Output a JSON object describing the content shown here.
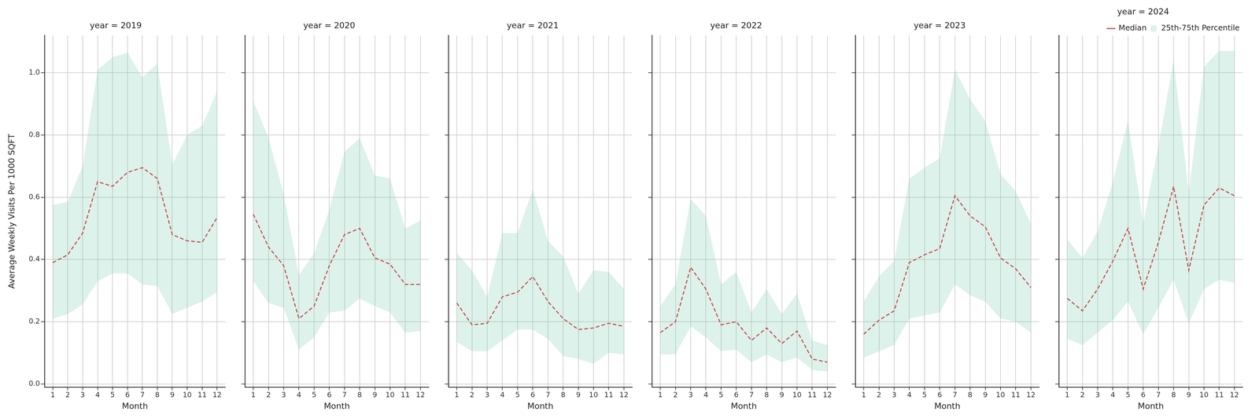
{
  "chart_data": [
    {
      "type": "line",
      "title": "year = 2019",
      "x_label": "Month",
      "y_label": "Average Weekly Visits Per 1000 SQFT",
      "x": [
        1,
        2,
        3,
        4,
        5,
        6,
        7,
        8,
        9,
        10,
        11,
        12
      ],
      "xlim": [
        0.45,
        12.55
      ],
      "xticks": [
        1,
        2,
        3,
        4,
        5,
        6,
        7,
        8,
        9,
        10,
        11,
        12
      ],
      "ylim": [
        -0.01,
        1.12
      ],
      "yticks": [
        {
          "value": 0,
          "label": "0.0"
        },
        0.2,
        0.4,
        0.6,
        0.8,
        {
          "value": 1,
          "label": "1.0"
        }
      ],
      "grid": true,
      "series": [
        {
          "name": "Median",
          "type": "line",
          "color": "#c44e52",
          "line_style": "dashed",
          "values": [
            0.39,
            0.415,
            0.485,
            0.65,
            0.635,
            0.68,
            0.695,
            0.66,
            0.48,
            0.46,
            0.455,
            0.535
          ]
        },
        {
          "name": "25th-75th Percentile",
          "type": "area",
          "color": "#66c2a5",
          "lower": [
            0.21,
            0.225,
            0.255,
            0.33,
            0.355,
            0.355,
            0.32,
            0.315,
            0.225,
            0.245,
            0.265,
            0.295
          ],
          "upper": [
            0.575,
            0.585,
            0.7,
            1.01,
            1.05,
            1.065,
            0.985,
            1.03,
            0.705,
            0.8,
            0.83,
            0.94
          ]
        }
      ]
    },
    {
      "type": "line",
      "title": "year = 2020",
      "x_label": "Month",
      "tick_labels": "x",
      "x": [
        1,
        2,
        3,
        4,
        5,
        6,
        7,
        8,
        9,
        10,
        11,
        12
      ],
      "xlim": [
        0.45,
        12.55
      ],
      "xticks": [
        1,
        2,
        3,
        4,
        5,
        6,
        7,
        8,
        9,
        10,
        11,
        12
      ],
      "ylim": [
        -0.01,
        1.12
      ],
      "yticks": [
        {
          "value": 0,
          "label": "0.0"
        },
        0.2,
        0.4,
        0.6,
        0.8,
        {
          "value": 1,
          "label": "1.0"
        }
      ],
      "grid": true,
      "series": [
        {
          "name": "Median",
          "type": "line",
          "color": "#c44e52",
          "line_style": "dashed",
          "values": [
            0.545,
            0.44,
            0.38,
            0.21,
            0.25,
            0.38,
            0.48,
            0.5,
            0.405,
            0.385,
            0.32,
            0.32
          ]
        },
        {
          "name": "25th-75th Percentile",
          "type": "area",
          "color": "#66c2a5",
          "lower": [
            0.33,
            0.26,
            0.245,
            0.11,
            0.15,
            0.23,
            0.235,
            0.275,
            0.25,
            0.23,
            0.165,
            0.17
          ],
          "upper": [
            0.91,
            0.79,
            0.61,
            0.35,
            0.42,
            0.56,
            0.745,
            0.79,
            0.67,
            0.66,
            0.5,
            0.525
          ]
        }
      ]
    },
    {
      "type": "line",
      "title": "year = 2021",
      "x_label": "Month",
      "tick_labels": "x",
      "x": [
        1,
        2,
        3,
        4,
        5,
        6,
        7,
        8,
        9,
        10,
        11,
        12
      ],
      "xlim": [
        0.45,
        12.55
      ],
      "xticks": [
        1,
        2,
        3,
        4,
        5,
        6,
        7,
        8,
        9,
        10,
        11,
        12
      ],
      "ylim": [
        -0.01,
        1.12
      ],
      "yticks": [
        {
          "value": 0,
          "label": "0.0"
        },
        0.2,
        0.4,
        0.6,
        0.8,
        {
          "value": 1,
          "label": "1.0"
        }
      ],
      "grid": true,
      "series": [
        {
          "name": "Median",
          "type": "line",
          "color": "#c44e52",
          "line_style": "dashed",
          "values": [
            0.26,
            0.19,
            0.195,
            0.28,
            0.295,
            0.345,
            0.265,
            0.21,
            0.175,
            0.18,
            0.195,
            0.185
          ]
        },
        {
          "name": "25th-75th Percentile",
          "type": "area",
          "color": "#66c2a5",
          "lower": [
            0.135,
            0.105,
            0.105,
            0.14,
            0.175,
            0.175,
            0.145,
            0.09,
            0.08,
            0.065,
            0.1,
            0.095
          ],
          "upper": [
            0.42,
            0.365,
            0.28,
            0.485,
            0.485,
            0.625,
            0.46,
            0.41,
            0.29,
            0.365,
            0.36,
            0.305
          ]
        }
      ]
    },
    {
      "type": "line",
      "title": "year = 2022",
      "x_label": "Month",
      "tick_labels": "x",
      "x": [
        1,
        2,
        3,
        4,
        5,
        6,
        7,
        8,
        9,
        10,
        11,
        12
      ],
      "xlim": [
        0.45,
        12.55
      ],
      "xticks": [
        1,
        2,
        3,
        4,
        5,
        6,
        7,
        8,
        9,
        10,
        11,
        12
      ],
      "ylim": [
        -0.01,
        1.12
      ],
      "yticks": [
        {
          "value": 0,
          "label": "0.0"
        },
        0.2,
        0.4,
        0.6,
        0.8,
        {
          "value": 1,
          "label": "1.0"
        }
      ],
      "grid": true,
      "series": [
        {
          "name": "Median",
          "type": "line",
          "color": "#c44e52",
          "line_style": "dashed",
          "values": [
            0.165,
            0.2,
            0.375,
            0.305,
            0.19,
            0.2,
            0.14,
            0.18,
            0.13,
            0.17,
            0.08,
            0.07
          ]
        },
        {
          "name": "25th-75th Percentile",
          "type": "area",
          "color": "#66c2a5",
          "lower": [
            0.095,
            0.095,
            0.185,
            0.15,
            0.105,
            0.11,
            0.07,
            0.095,
            0.07,
            0.085,
            0.045,
            0.04
          ],
          "upper": [
            0.25,
            0.32,
            0.595,
            0.54,
            0.32,
            0.36,
            0.23,
            0.305,
            0.225,
            0.29,
            0.14,
            0.125
          ]
        }
      ]
    },
    {
      "type": "line",
      "title": "year = 2023",
      "x_label": "Month",
      "tick_labels": "x",
      "x": [
        1,
        2,
        3,
        4,
        5,
        6,
        7,
        8,
        9,
        10,
        11,
        12
      ],
      "xlim": [
        0.45,
        12.55
      ],
      "xticks": [
        1,
        2,
        3,
        4,
        5,
        6,
        7,
        8,
        9,
        10,
        11,
        12
      ],
      "ylim": [
        -0.01,
        1.12
      ],
      "yticks": [
        {
          "value": 0,
          "label": "0.0"
        },
        0.2,
        0.4,
        0.6,
        0.8,
        {
          "value": 1,
          "label": "1.0"
        }
      ],
      "grid": true,
      "series": [
        {
          "name": "Median",
          "type": "line",
          "color": "#c44e52",
          "line_style": "dashed",
          "values": [
            0.16,
            0.205,
            0.235,
            0.39,
            0.415,
            0.435,
            0.605,
            0.54,
            0.505,
            0.405,
            0.37,
            0.31
          ]
        },
        {
          "name": "25th-75th Percentile",
          "type": "area",
          "color": "#66c2a5",
          "lower": [
            0.085,
            0.105,
            0.125,
            0.21,
            0.22,
            0.23,
            0.32,
            0.285,
            0.265,
            0.21,
            0.2,
            0.165
          ],
          "upper": [
            0.265,
            0.345,
            0.395,
            0.66,
            0.695,
            0.725,
            1.01,
            0.915,
            0.845,
            0.675,
            0.62,
            0.515
          ]
        }
      ]
    },
    {
      "type": "line",
      "title": "year = 2024",
      "x_label": "Month",
      "tick_labels": "x",
      "legend": "upper right",
      "x": [
        1,
        2,
        3,
        4,
        5,
        6,
        7,
        8,
        9,
        10,
        11,
        12
      ],
      "xlim": [
        0.45,
        12.55
      ],
      "xticks": [
        1,
        2,
        3,
        4,
        5,
        6,
        7,
        8,
        9,
        10,
        11,
        12
      ],
      "ylim": [
        -0.01,
        1.12
      ],
      "yticks": [
        {
          "value": 0,
          "label": "0.0"
        },
        0.2,
        0.4,
        0.6,
        0.8,
        {
          "value": 1,
          "label": "1.0"
        }
      ],
      "grid": true,
      "series": [
        {
          "name": "Median",
          "type": "line",
          "color": "#c44e52",
          "line_style": "dashed",
          "values": [
            0.275,
            0.235,
            0.305,
            0.395,
            0.5,
            0.305,
            0.455,
            0.635,
            0.365,
            0.575,
            0.63,
            0.605
          ]
        },
        {
          "name": "25th-75th Percentile",
          "type": "area",
          "color": "#66c2a5",
          "lower": [
            0.145,
            0.125,
            0.165,
            0.205,
            0.265,
            0.16,
            0.245,
            0.335,
            0.195,
            0.305,
            0.335,
            0.325
          ],
          "upper": [
            0.465,
            0.405,
            0.49,
            0.65,
            0.845,
            0.515,
            0.765,
            1.04,
            0.615,
            1.02,
            1.07,
            1.07
          ]
        }
      ]
    }
  ]
}
